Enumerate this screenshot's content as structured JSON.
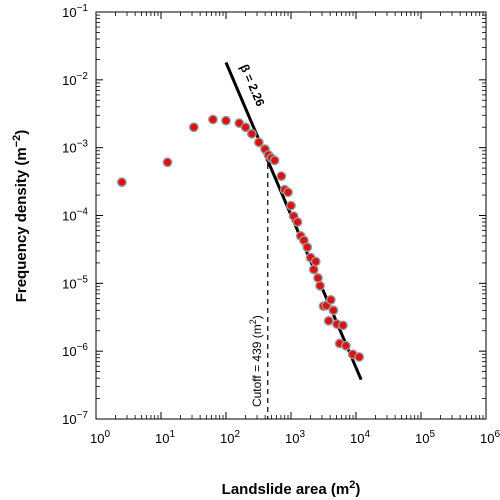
{
  "chart_data": {
    "type": "scatter",
    "xlabel": "Landslide area (m",
    "xlabel_sup": "2",
    "xlabel_end": ")",
    "ylabel": "Frequency density (m",
    "ylabel_sup": "−2",
    "ylabel_end": ")",
    "x_scale": "log",
    "y_scale": "log",
    "xlim": [
      1,
      1000000
    ],
    "ylim": [
      1e-07,
      0.1
    ],
    "grid": false,
    "x_ticks": [
      {
        "value": 1,
        "base": "10",
        "exp": "0"
      },
      {
        "value": 10,
        "base": "10",
        "exp": "1"
      },
      {
        "value": 100,
        "base": "10",
        "exp": "2"
      },
      {
        "value": 1000,
        "base": "10",
        "exp": "3"
      },
      {
        "value": 10000,
        "base": "10",
        "exp": "4"
      },
      {
        "value": 100000,
        "base": "10",
        "exp": "5"
      },
      {
        "value": 1000000,
        "base": "10",
        "exp": "6"
      }
    ],
    "y_ticks": [
      {
        "value": 1e-07,
        "base": "10",
        "exp": "−7"
      },
      {
        "value": 1e-06,
        "base": "10",
        "exp": "−6"
      },
      {
        "value": 1e-05,
        "base": "10",
        "exp": "−5"
      },
      {
        "value": 0.0001,
        "base": "10",
        "exp": "−4"
      },
      {
        "value": 0.001,
        "base": "10",
        "exp": "−3"
      },
      {
        "value": 0.01,
        "base": "10",
        "exp": "−2"
      },
      {
        "value": 0.1,
        "base": "10",
        "exp": "−1"
      }
    ],
    "series": [
      {
        "marker_color": "#dd1111",
        "marker_edge": "#999999",
        "points": [
          [
            2.5,
            0.00031
          ],
          [
            12.6,
            0.00061
          ],
          [
            32,
            0.002
          ],
          [
            63,
            0.0026
          ],
          [
            100,
            0.0025
          ],
          [
            160,
            0.0023
          ],
          [
            200,
            0.002
          ],
          [
            250,
            0.0016
          ],
          [
            320,
            0.0012
          ],
          [
            398,
            0.00095
          ],
          [
            450,
            0.00078
          ],
          [
            500,
            0.0007
          ],
          [
            560,
            0.00065
          ],
          [
            710,
            0.00038
          ],
          [
            800,
            0.00024
          ],
          [
            900,
            0.00022
          ],
          [
            1000,
            0.00014
          ],
          [
            1100,
            9.8e-05
          ],
          [
            1260,
            8e-05
          ],
          [
            1410,
            5e-05
          ],
          [
            1580,
            4.3e-05
          ],
          [
            1780,
            3.4e-05
          ],
          [
            2000,
            2.4e-05
          ],
          [
            2240,
            1.6e-05
          ],
          [
            2400,
            2.1e-05
          ],
          [
            2600,
            1.2e-05
          ],
          [
            2800,
            9.2e-06
          ],
          [
            3160,
            4.6e-06
          ],
          [
            3500,
            4.7e-06
          ],
          [
            3800,
            2.8e-06
          ],
          [
            4100,
            5.7e-06
          ],
          [
            4500,
            4e-06
          ],
          [
            5100,
            2.5e-06
          ],
          [
            5600,
            1.3e-06
          ],
          [
            6300,
            2.4e-06
          ],
          [
            7000,
            1.2e-06
          ],
          [
            8900,
            9e-07
          ],
          [
            11200,
            8.2e-07
          ]
        ]
      }
    ],
    "fit_line": {
      "label": "β = 2.26",
      "from": [
        100,
        0.018
      ],
      "to": [
        12000,
        3.8e-07
      ],
      "color": "#000000"
    },
    "cutoff": {
      "label": "Cutoff = 439 (m",
      "label_sup": "2",
      "label_end": ")",
      "x": 439,
      "y_top": 0.00078,
      "y_bottom": 1e-07
    }
  }
}
